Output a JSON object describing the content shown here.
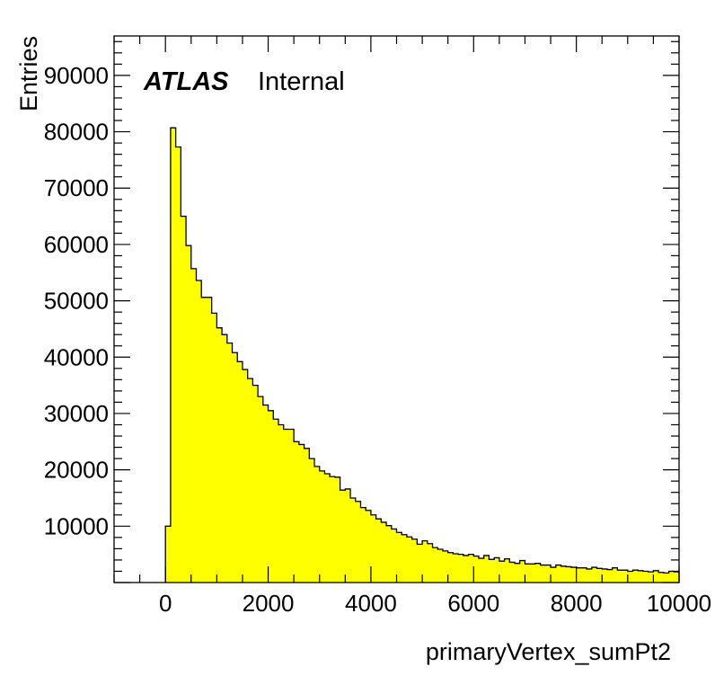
{
  "chart_data": {
    "type": "bar",
    "style": "histogram",
    "fill_color": "#ffff00",
    "line_color": "#000000",
    "xlabel": "primaryVertex_sumPt2",
    "ylabel": "Entries",
    "label_bold_italic": "ATLAS",
    "label_plain": "Internal",
    "xlim": [
      -1000,
      10000
    ],
    "ylim": [
      0,
      97000
    ],
    "xticks": [
      0,
      2000,
      4000,
      6000,
      8000,
      10000
    ],
    "yticks": [
      10000,
      20000,
      30000,
      40000,
      50000,
      60000,
      70000,
      80000,
      90000
    ],
    "bin_start": 0,
    "bin_width": 100,
    "values": [
      10000,
      80700,
      77300,
      65000,
      59800,
      55700,
      53600,
      50600,
      50600,
      47800,
      45200,
      44000,
      42500,
      40800,
      39200,
      37800,
      36200,
      35000,
      33000,
      31500,
      30500,
      29000,
      28000,
      27200,
      27200,
      25000,
      24500,
      23800,
      22000,
      20600,
      19800,
      19300,
      18800,
      18700,
      16400,
      16600,
      15000,
      14400,
      13300,
      12800,
      12000,
      11300,
      10700,
      10100,
      9500,
      8900,
      8500,
      8100,
      7700,
      6800,
      7400,
      6900,
      6200,
      5900,
      5600,
      5300,
      5100,
      5000,
      4800,
      5000,
      4700,
      4300,
      4800,
      4100,
      4400,
      3800,
      4200,
      3600,
      3400,
      3900,
      3300,
      3300,
      3400,
      3100,
      3100,
      2700,
      3100,
      2900,
      2800,
      2700,
      2600,
      2600,
      2400,
      2700,
      2500,
      2400,
      2300,
      2600,
      2200,
      2200,
      2000,
      2200,
      2100,
      2000,
      1900,
      2100,
      1800,
      1700,
      2000,
      1900
    ]
  }
}
